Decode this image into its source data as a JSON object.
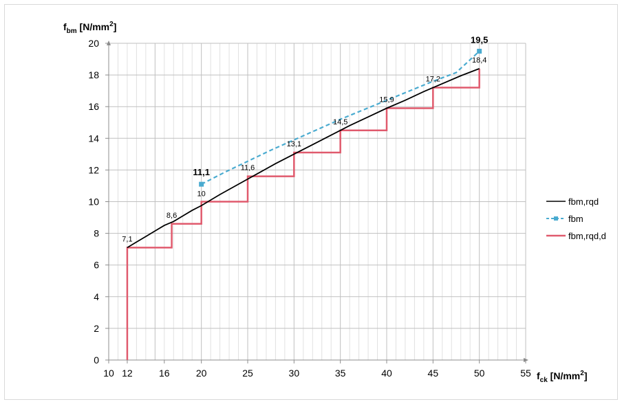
{
  "chart_data": {
    "type": "line",
    "title": "",
    "ylabel": {
      "main": "f",
      "sub": "bm",
      "unit_pre": " [N/mm",
      "unit_sup": "2",
      "unit_post": "]"
    },
    "xlabel": {
      "main": "f",
      "sub": "ck",
      "unit_pre": " [N/mm",
      "unit_sup": "2",
      "unit_post": "]"
    },
    "xlim": [
      10,
      55
    ],
    "ylim": [
      0,
      20
    ],
    "x_ticks": [
      {
        "v": 10,
        "t": "10"
      },
      {
        "v": 12,
        "t": "12"
      },
      {
        "v": 16,
        "t": "16"
      },
      {
        "v": 20,
        "t": "20"
      },
      {
        "v": 25,
        "t": "25"
      },
      {
        "v": 30,
        "t": "30"
      },
      {
        "v": 35,
        "t": "35"
      },
      {
        "v": 40,
        "t": "40"
      },
      {
        "v": 45,
        "t": "45"
      },
      {
        "v": 50,
        "t": "50"
      },
      {
        "v": 55,
        "t": "55"
      }
    ],
    "y_ticks": [
      {
        "v": 0,
        "t": "0"
      },
      {
        "v": 2,
        "t": "2"
      },
      {
        "v": 4,
        "t": "4"
      },
      {
        "v": 6,
        "t": "6"
      },
      {
        "v": 8,
        "t": "8"
      },
      {
        "v": 10,
        "t": "10"
      },
      {
        "v": 12,
        "t": "12"
      },
      {
        "v": 14,
        "t": "14"
      },
      {
        "v": 16,
        "t": "16"
      },
      {
        "v": 18,
        "t": "18"
      },
      {
        "v": 20,
        "t": "20"
      }
    ],
    "grid": "vertical minor lines",
    "legend_position": "right",
    "series": [
      {
        "name": "fbm,rqd",
        "color": "#000000",
        "style": "solid",
        "x": [
          12,
          13,
          14,
          15,
          16,
          17,
          18,
          19,
          20,
          22,
          24,
          26,
          28,
          30,
          32,
          34,
          36,
          38,
          40,
          42,
          44,
          46,
          48,
          50
        ],
        "y": [
          7.1,
          7.45,
          7.8,
          8.15,
          8.5,
          8.75,
          9.1,
          9.45,
          9.75,
          10.45,
          11.1,
          11.75,
          12.4,
          13.0,
          13.6,
          14.2,
          14.8,
          15.35,
          15.9,
          16.4,
          16.95,
          17.45,
          17.95,
          18.4
        ]
      },
      {
        "name": "fbm",
        "color": "#4aabd0",
        "style": "dashed",
        "x": [
          20,
          22.5,
          25,
          27.5,
          30,
          32.5,
          35,
          37.5,
          40,
          42.5,
          45,
          47.5,
          50
        ],
        "y": [
          11.1,
          11.85,
          12.55,
          13.25,
          13.9,
          14.55,
          15.2,
          15.8,
          16.4,
          17.0,
          17.6,
          18.15,
          19.5
        ],
        "markers": [
          {
            "x": 20,
            "y": 11.1
          },
          {
            "x": 50,
            "y": 19.5
          }
        ]
      },
      {
        "name": "fbm,rqd,d",
        "color": "#e05a6d",
        "style": "step",
        "points": [
          [
            12,
            0
          ],
          [
            12,
            7.1
          ],
          [
            16.8,
            7.1
          ],
          [
            16.8,
            8.6
          ],
          [
            20,
            8.6
          ],
          [
            20,
            10
          ],
          [
            25,
            10
          ],
          [
            25,
            11.6
          ],
          [
            30,
            11.6
          ],
          [
            30,
            13.1
          ],
          [
            35,
            13.1
          ],
          [
            35,
            14.5
          ],
          [
            40,
            14.5
          ],
          [
            40,
            15.9
          ],
          [
            45,
            15.9
          ],
          [
            45,
            17.2
          ],
          [
            50,
            17.2
          ],
          [
            50,
            18.4
          ]
        ]
      }
    ],
    "data_labels": [
      {
        "x": 12,
        "y": 7.1,
        "t": "7,1",
        "bold": false,
        "dx": 0,
        "dy": -9
      },
      {
        "x": 16.8,
        "y": 8.6,
        "t": "8,6",
        "bold": false,
        "dx": 0,
        "dy": -9
      },
      {
        "x": 20,
        "y": 10,
        "t": "10",
        "bold": false,
        "dx": 0,
        "dy": -8
      },
      {
        "x": 25,
        "y": 11.6,
        "t": "11,6",
        "bold": false,
        "dx": 0,
        "dy": -9
      },
      {
        "x": 30,
        "y": 13.1,
        "t": "13,1",
        "bold": false,
        "dx": 0,
        "dy": -9
      },
      {
        "x": 35,
        "y": 14.5,
        "t": "14,5",
        "bold": false,
        "dx": 0,
        "dy": -9
      },
      {
        "x": 40,
        "y": 15.9,
        "t": "15,9",
        "bold": false,
        "dx": 0,
        "dy": -9
      },
      {
        "x": 45,
        "y": 17.2,
        "t": "17,2",
        "bold": false,
        "dx": 0,
        "dy": -9
      },
      {
        "x": 50,
        "y": 18.4,
        "t": "18,4",
        "bold": false,
        "dx": 0,
        "dy": -9
      },
      {
        "x": 20,
        "y": 11.1,
        "t": "11,1",
        "bold": true,
        "dx": 0,
        "dy": -13
      },
      {
        "x": 50,
        "y": 19.5,
        "t": "19,5",
        "bold": true,
        "dx": 0,
        "dy": -12
      }
    ]
  }
}
